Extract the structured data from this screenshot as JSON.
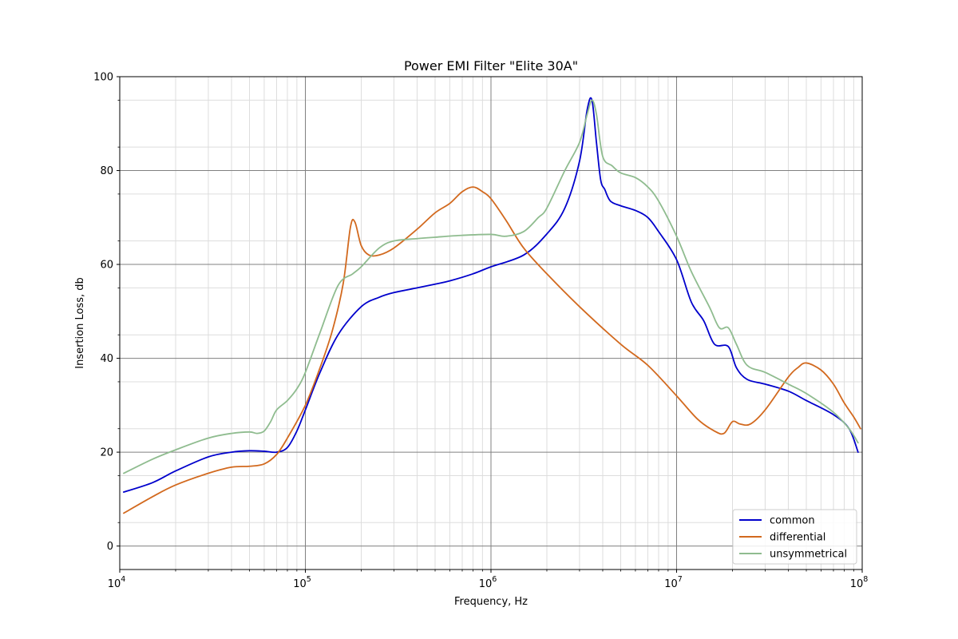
{
  "chart_data": {
    "type": "line",
    "title": "Power EMI Filter \"Elite 30A\"",
    "xlabel": "Frequency, Hz",
    "ylabel": "Insertion Loss, db",
    "xscale": "log",
    "xlim": [
      10000,
      100000000
    ],
    "ylim": [
      -5,
      100
    ],
    "x_ticks": [
      {
        "value": 10000,
        "base": "10",
        "exp": "4"
      },
      {
        "value": 100000,
        "base": "10",
        "exp": "5"
      },
      {
        "value": 1000000,
        "base": "10",
        "exp": "6"
      },
      {
        "value": 10000000,
        "base": "10",
        "exp": "7"
      },
      {
        "value": 100000000,
        "base": "10",
        "exp": "8"
      }
    ],
    "y_ticks": [
      "0",
      "20",
      "40",
      "60",
      "80",
      "100"
    ],
    "grid": true,
    "legend_position": "bottom-right",
    "series": [
      {
        "name": "common",
        "color": "#0000cc",
        "x": [
          10500,
          15000,
          20000,
          30000,
          40000,
          50000,
          60000,
          70000,
          80000,
          90000,
          100000,
          120000,
          150000,
          200000,
          250000,
          300000,
          400000,
          500000,
          600000,
          800000,
          1000000,
          1500000,
          2000000,
          2500000,
          3000000,
          3300000,
          3500000,
          3700000,
          3900000,
          4100000,
          4400000,
          5000000,
          6000000,
          7000000,
          8000000,
          10000000,
          12000000,
          14000000,
          16000000,
          19000000,
          21000000,
          24000000,
          30000000,
          40000000,
          50000000,
          70000000,
          85000000,
          95000000
        ],
        "y": [
          11.5,
          13.5,
          16.0,
          19.0,
          20.0,
          20.3,
          20.2,
          20.0,
          21.0,
          24.5,
          29.0,
          37.0,
          45.0,
          51.0,
          53.0,
          54.0,
          55.0,
          55.8,
          56.5,
          58.0,
          59.5,
          62.0,
          66.5,
          72.0,
          82.0,
          93.0,
          95.0,
          86.0,
          78.0,
          76.0,
          73.5,
          72.5,
          71.5,
          70.0,
          67.0,
          61.0,
          52.0,
          48.0,
          43.0,
          42.5,
          38.0,
          35.5,
          34.5,
          33.0,
          31.0,
          28.0,
          25.0,
          20.0
        ]
      },
      {
        "name": "differential",
        "color": "#d2691e",
        "x": [
          10500,
          15000,
          20000,
          30000,
          40000,
          50000,
          60000,
          70000,
          80000,
          100000,
          120000,
          140000,
          160000,
          175000,
          185000,
          200000,
          220000,
          250000,
          300000,
          400000,
          500000,
          600000,
          700000,
          800000,
          900000,
          1000000,
          1200000,
          1500000,
          2000000,
          3000000,
          5000000,
          7000000,
          10000000,
          13000000,
          16000000,
          18000000,
          20000000,
          22000000,
          25000000,
          30000000,
          40000000,
          45000000,
          50000000,
          60000000,
          70000000,
          80000000,
          90000000,
          98000000
        ],
        "y": [
          7.0,
          10.5,
          13.0,
          15.5,
          16.8,
          17.0,
          17.5,
          19.5,
          23.0,
          30.0,
          38.0,
          46.0,
          56.0,
          68.0,
          69.0,
          64.0,
          62.0,
          62.0,
          63.5,
          67.5,
          71.0,
          73.0,
          75.5,
          76.5,
          75.5,
          74.0,
          69.5,
          63.5,
          58.0,
          51.0,
          43.0,
          38.5,
          32.0,
          27.0,
          24.5,
          24.0,
          26.5,
          26.0,
          26.0,
          29.0,
          36.0,
          38.0,
          39.0,
          37.5,
          34.5,
          30.5,
          27.5,
          25.0
        ]
      },
      {
        "name": "unsymmetrical",
        "color": "#8fbc8f",
        "x": [
          10500,
          15000,
          20000,
          30000,
          40000,
          50000,
          55000,
          60000,
          65000,
          70000,
          80000,
          90000,
          100000,
          120000,
          150000,
          180000,
          200000,
          250000,
          300000,
          400000,
          500000,
          700000,
          1000000,
          1200000,
          1500000,
          1800000,
          2000000,
          2500000,
          3000000,
          3300000,
          3500000,
          3700000,
          4000000,
          4500000,
          5000000,
          6000000,
          7000000,
          8000000,
          10000000,
          12000000,
          15000000,
          17000000,
          19000000,
          21000000,
          24000000,
          30000000,
          40000000,
          50000000,
          70000000,
          85000000,
          95000000
        ],
        "y": [
          15.5,
          18.5,
          20.5,
          23.0,
          24.0,
          24.3,
          24.0,
          24.5,
          26.5,
          29.0,
          31.0,
          33.5,
          37.0,
          45.5,
          55.5,
          58.0,
          59.5,
          63.5,
          65.0,
          65.5,
          65.8,
          66.2,
          66.4,
          66.0,
          67.0,
          70.0,
          72.0,
          80.0,
          86.0,
          92.0,
          95.0,
          92.0,
          83.0,
          81.0,
          79.5,
          78.5,
          76.5,
          73.5,
          66.0,
          58.5,
          51.0,
          46.5,
          46.5,
          43.0,
          38.5,
          37.0,
          34.5,
          32.5,
          28.5,
          25.0,
          22.0
        ]
      }
    ]
  }
}
